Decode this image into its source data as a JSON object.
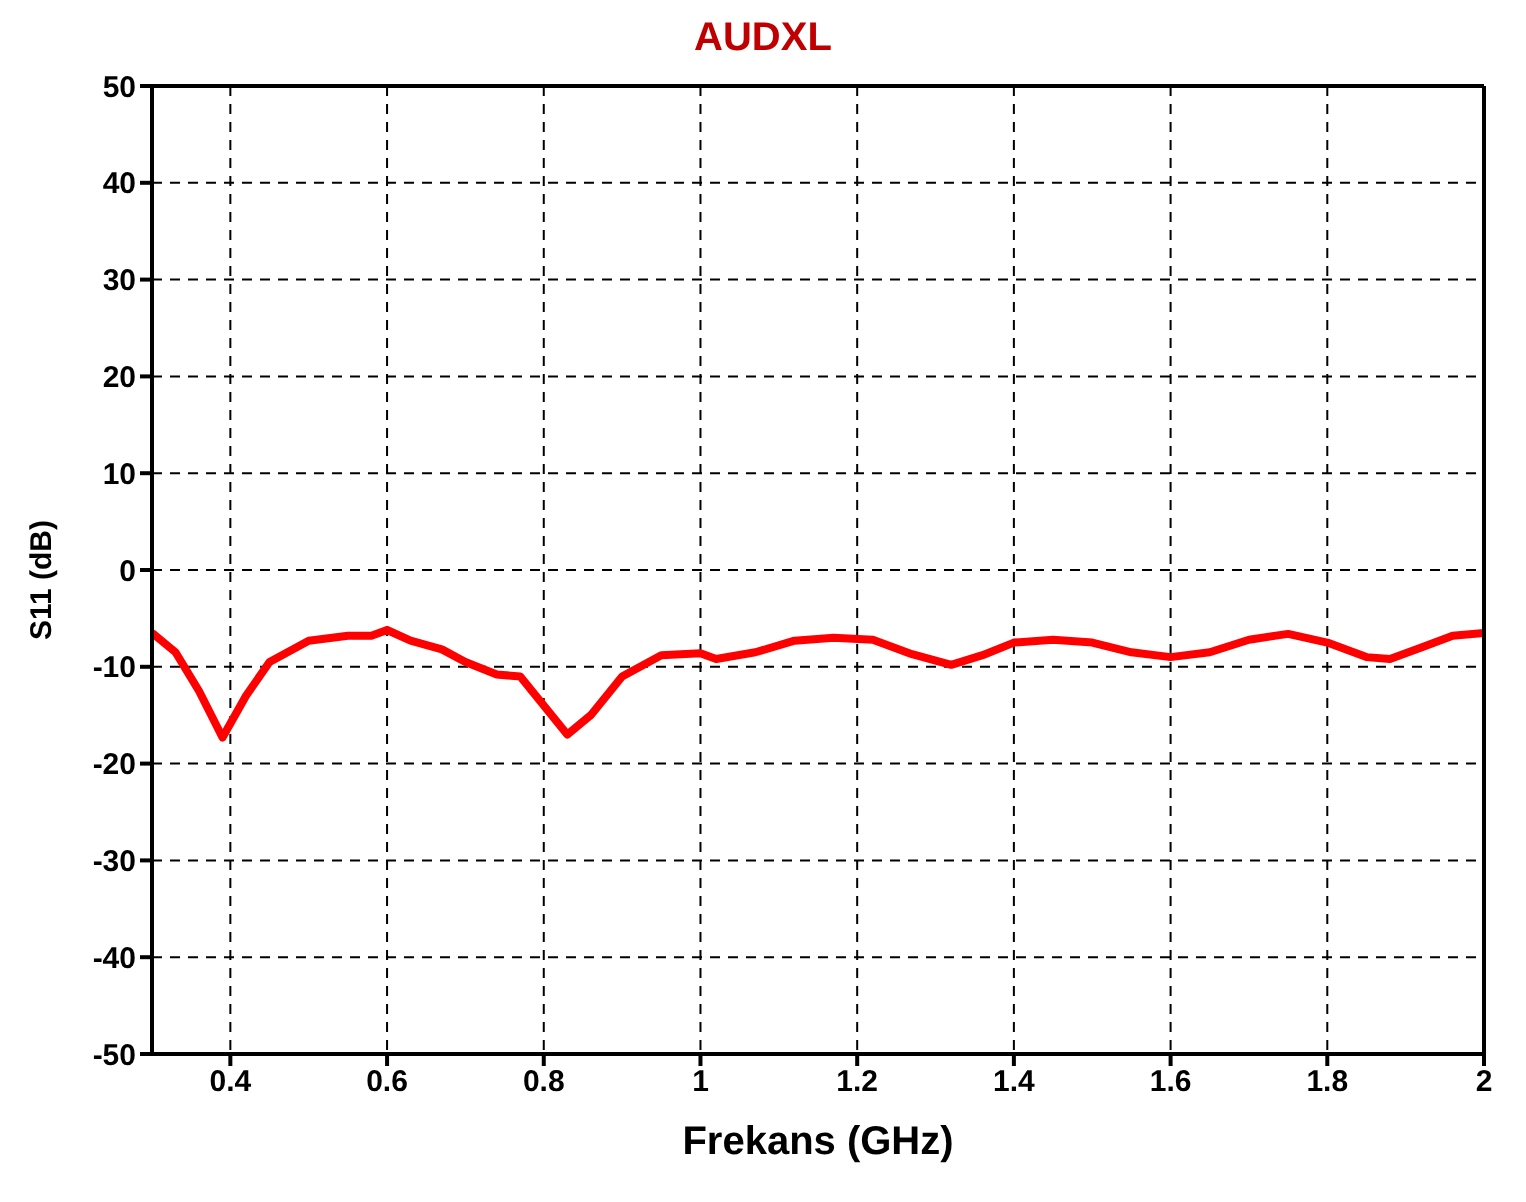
{
  "chart_data": {
    "type": "line",
    "title": "AUDXL",
    "xlabel": "Frekans (GHz)",
    "ylabel": "S11 (dB)",
    "x": [
      0.3,
      0.33,
      0.36,
      0.39,
      0.42,
      0.45,
      0.5,
      0.55,
      0.58,
      0.6,
      0.63,
      0.67,
      0.7,
      0.74,
      0.77,
      0.83,
      0.86,
      0.9,
      0.95,
      1.0,
      1.02,
      1.07,
      1.12,
      1.17,
      1.22,
      1.27,
      1.32,
      1.36,
      1.4,
      1.45,
      1.5,
      1.55,
      1.6,
      1.65,
      1.7,
      1.75,
      1.8,
      1.85,
      1.88,
      1.92,
      1.96,
      2.0
    ],
    "series": [
      {
        "color": "#ff0000",
        "values": [
          -6.5,
          -8.5,
          -12.5,
          -17.3,
          -13,
          -9.5,
          -7.3,
          -6.8,
          -6.8,
          -6.2,
          -7.3,
          -8.2,
          -9.5,
          -10.8,
          -11,
          -17,
          -15,
          -11,
          -8.8,
          -8.6,
          -9.2,
          -8.5,
          -7.3,
          -7,
          -7.2,
          -8.7,
          -9.8,
          -8.8,
          -7.5,
          -7.2,
          -7.5,
          -8.5,
          -9,
          -8.5,
          -7.2,
          -6.6,
          -7.5,
          -9,
          -9.2,
          -8,
          -6.8,
          -6.5
        ]
      }
    ],
    "xlim": [
      0.3,
      2
    ],
    "xticks": [
      0.4,
      0.6,
      0.8,
      1,
      1.2,
      1.4,
      1.6,
      1.8,
      2
    ],
    "ylim": [
      -50,
      50
    ],
    "yticks": [
      -50,
      -40,
      -30,
      -20,
      -10,
      0,
      10,
      20,
      30,
      40,
      50
    ],
    "grid": true,
    "legend": false,
    "marker": "none",
    "line_style": "solid"
  }
}
